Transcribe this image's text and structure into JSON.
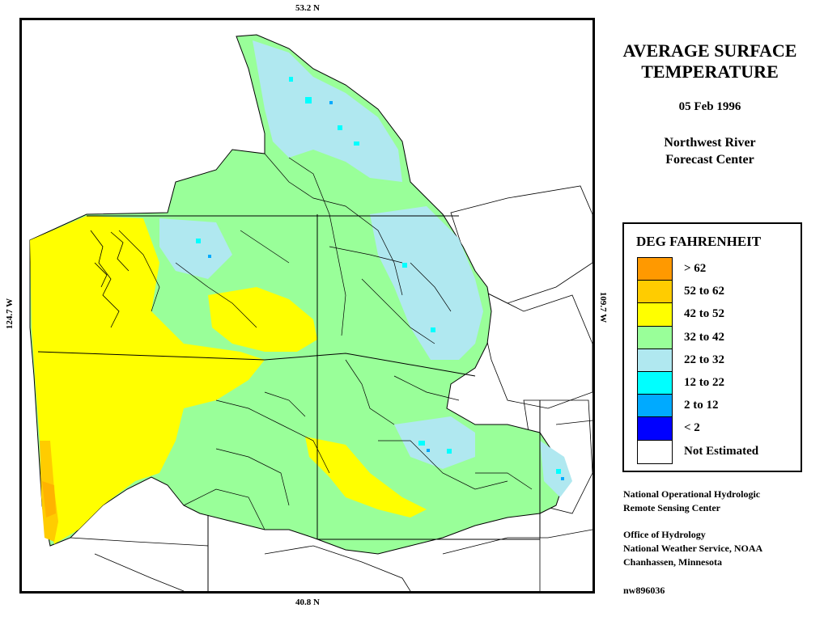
{
  "coordinates": {
    "north": "53.2 N",
    "south": "40.8 N",
    "west": "124.7 W",
    "east": "109.7 W"
  },
  "title": {
    "line1": "AVERAGE SURFACE",
    "line2": "TEMPERATURE",
    "date": "05 Feb 1996",
    "org_line1": "Northwest River",
    "org_line2": "Forecast Center"
  },
  "legend": {
    "title": "DEG FAHRENHEIT",
    "items": [
      {
        "label": "> 62",
        "color": "#ff9900"
      },
      {
        "label": "52 to 62",
        "color": "#ffcc00"
      },
      {
        "label": "42 to 52",
        "color": "#ffff00"
      },
      {
        "label": "32 to 42",
        "color": "#99ff99"
      },
      {
        "label": "22 to 32",
        "color": "#b0e8f0"
      },
      {
        "label": "12 to 22",
        "color": "#00ffff"
      },
      {
        "label": "2 to 12",
        "color": "#00aaff"
      },
      {
        "label": "< 2",
        "color": "#0000ff"
      },
      {
        "label": "Not Estimated",
        "color": "#ffffff"
      }
    ]
  },
  "credits": {
    "line1": "National Operational Hydrologic",
    "line2": "Remote Sensing Center",
    "line3": "Office of Hydrology",
    "line4": "National Weather Service, NOAA",
    "line5": "Chanhassen, Minnesota",
    "product_id": "nw896036"
  }
}
